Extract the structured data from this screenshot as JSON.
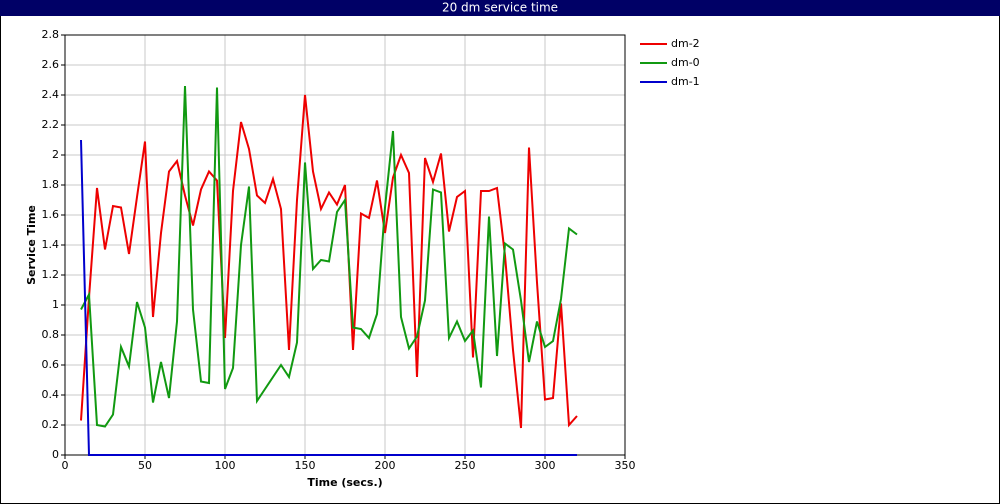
{
  "chart_data": {
    "type": "line",
    "title": "20 dm service time",
    "x_label": "Time (secs.)",
    "y_label": "Service Time",
    "xlim": [
      0,
      350
    ],
    "xticks": [
      0,
      50,
      100,
      150,
      200,
      250,
      300,
      350
    ],
    "ylim": [
      0,
      2.8
    ],
    "yticks": [
      0,
      0.2,
      0.4,
      0.6,
      0.8,
      1,
      1.2,
      1.4,
      1.6,
      1.8,
      2,
      2.2,
      2.4,
      2.6,
      2.8
    ],
    "grid": true,
    "legend": "right",
    "x": [
      10,
      15,
      20,
      25,
      30,
      35,
      40,
      45,
      50,
      55,
      60,
      65,
      70,
      75,
      80,
      85,
      90,
      95,
      100,
      105,
      110,
      115,
      120,
      125,
      130,
      135,
      140,
      145,
      150,
      155,
      160,
      165,
      170,
      175,
      180,
      185,
      190,
      195,
      200,
      205,
      210,
      215,
      220,
      225,
      230,
      235,
      240,
      245,
      250,
      255,
      260,
      265,
      270,
      275,
      280,
      285,
      290,
      295,
      300,
      305,
      310,
      315,
      320
    ],
    "series": [
      {
        "name": "dm-2",
        "color": "#ee0000",
        "values": [
          0.23,
          1.05,
          1.78,
          1.37,
          1.66,
          1.65,
          1.34,
          1.72,
          2.09,
          0.92,
          1.48,
          1.89,
          1.96,
          1.73,
          1.53,
          1.77,
          1.89,
          1.83,
          0.78,
          1.76,
          2.22,
          2.04,
          1.73,
          1.68,
          1.84,
          1.64,
          0.7,
          1.7,
          2.4,
          1.89,
          1.64,
          1.75,
          1.67,
          1.8,
          0.7,
          1.61,
          1.58,
          1.83,
          1.48,
          1.85,
          2.0,
          1.88,
          0.52,
          1.98,
          1.82,
          2.01,
          1.49,
          1.72,
          1.76,
          0.65,
          1.76,
          1.76,
          1.78,
          1.33,
          0.7,
          0.18,
          2.05,
          1.15,
          0.37,
          0.38,
          1.01,
          0.2,
          0.26
        ]
      },
      {
        "name": "dm-0",
        "color": "#119911",
        "values": [
          0.97,
          1.07,
          0.2,
          0.19,
          0.27,
          0.72,
          0.59,
          1.02,
          0.85,
          0.35,
          0.62,
          0.38,
          0.89,
          2.46,
          0.97,
          0.49,
          0.48,
          2.45,
          0.44,
          0.58,
          1.4,
          1.79,
          0.36,
          0.44,
          0.52,
          0.6,
          0.52,
          0.75,
          1.95,
          1.24,
          1.3,
          1.29,
          1.62,
          1.7,
          0.85,
          0.84,
          0.78,
          0.94,
          1.65,
          2.16,
          0.92,
          0.71,
          0.79,
          1.03,
          1.77,
          1.75,
          0.78,
          0.89,
          0.76,
          0.83,
          0.45,
          1.59,
          0.66,
          1.41,
          1.37,
          1.03,
          0.62,
          0.89,
          0.72,
          0.76,
          1.04,
          1.51,
          1.47
        ]
      },
      {
        "name": "dm-1",
        "color": "#0000cc",
        "values": [
          2.1,
          0,
          0,
          0,
          0,
          0,
          0,
          0,
          0,
          0,
          0,
          0,
          0,
          0,
          0,
          0,
          0,
          0,
          0,
          0,
          0,
          0,
          0,
          0,
          0,
          0,
          0,
          0,
          0,
          0,
          0,
          0,
          0,
          0,
          0,
          0,
          0,
          0,
          0,
          0,
          0,
          0,
          0,
          0,
          0,
          0,
          0,
          0,
          0,
          0,
          0,
          0,
          0,
          0,
          0,
          0,
          0,
          0,
          0,
          0,
          0,
          0,
          0
        ]
      }
    ]
  }
}
